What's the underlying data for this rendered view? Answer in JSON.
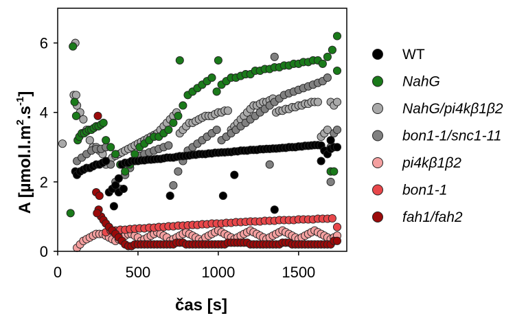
{
  "chart_data": {
    "type": "scatter",
    "xlabel": "čas [s]",
    "ylabel_parts": [
      "A [µmol.l.m",
      "2",
      ".s",
      "-1",
      "]"
    ],
    "xlim": [
      0,
      1800
    ],
    "ylim": [
      0,
      7
    ],
    "xticks": [
      0,
      500,
      1000,
      1500
    ],
    "yticks": [
      0,
      2,
      4,
      6
    ],
    "grid": false,
    "legend_position": "right",
    "series": [
      {
        "name": "WT",
        "italic": false,
        "color": "#000000",
        "x": [
          110,
          120,
          140,
          160,
          180,
          200,
          220,
          240,
          260,
          280,
          300,
          320,
          340,
          360,
          380,
          400,
          420,
          440,
          460,
          480,
          500,
          520,
          540,
          560,
          580,
          600,
          620,
          640,
          660,
          680,
          700,
          720,
          740,
          760,
          780,
          800,
          820,
          840,
          860,
          880,
          900,
          920,
          940,
          960,
          980,
          1000,
          1020,
          1040,
          1060,
          1080,
          1100,
          1120,
          1140,
          1160,
          1180,
          1200,
          1220,
          1240,
          1260,
          1280,
          1300,
          1320,
          1340,
          1360,
          1380,
          1400,
          1420,
          1440,
          1460,
          1480,
          1500,
          1520,
          1540,
          1560,
          1580,
          1600,
          1620,
          1640,
          1660,
          1680,
          1700,
          1720,
          1740,
          350,
          380,
          410,
          700,
          1030,
          1350,
          1700,
          1640,
          1100
        ],
        "y": [
          2.3,
          2.2,
          2.3,
          2.35,
          2.4,
          2.4,
          2.45,
          2.5,
          2.5,
          2.55,
          2.6,
          1.7,
          1.8,
          1.9,
          2.1,
          2.5,
          2.55,
          2.55,
          2.6,
          2.6,
          2.6,
          2.62,
          2.62,
          2.64,
          2.64,
          2.65,
          2.66,
          2.66,
          2.68,
          2.7,
          2.7,
          2.7,
          2.72,
          2.74,
          2.74,
          2.75,
          2.76,
          2.78,
          2.78,
          2.8,
          2.8,
          2.8,
          2.82,
          2.82,
          2.84,
          2.84,
          2.85,
          2.85,
          2.86,
          2.86,
          2.88,
          2.88,
          2.9,
          2.9,
          2.9,
          2.92,
          2.92,
          2.92,
          2.94,
          2.94,
          2.95,
          2.95,
          2.96,
          2.96,
          2.97,
          2.98,
          2.98,
          3.0,
          3.0,
          3.0,
          3.02,
          3.02,
          3.04,
          3.04,
          3.05,
          3.06,
          3.06,
          3.05,
          2.9,
          2.8,
          2.95,
          3.0,
          3.0,
          1.3,
          1.7,
          1.8,
          1.6,
          1.6,
          1.2,
          3.2,
          2.6,
          2.2
        ]
      },
      {
        "name": "NahG",
        "italic": true,
        "color": "#1a7a1a",
        "x": [
          80,
          95,
          105,
          115,
          125,
          135,
          150,
          165,
          180,
          195,
          210,
          225,
          240,
          255,
          270,
          285,
          300,
          330,
          360,
          390,
          420,
          450,
          480,
          510,
          540,
          570,
          600,
          630,
          660,
          690,
          720,
          750,
          780,
          810,
          840,
          870,
          900,
          930,
          960,
          990,
          1020,
          1050,
          1080,
          1110,
          1140,
          1170,
          1200,
          1230,
          1260,
          1290,
          1320,
          1350,
          1380,
          1410,
          1440,
          1470,
          1500,
          1530,
          1560,
          1590,
          1620,
          1650,
          1680,
          1710,
          1740,
          760,
          1000,
          1700,
          1720,
          1740
        ],
        "y": [
          1.1,
          5.9,
          4.3,
          3.9,
          3.2,
          3.3,
          3.4,
          3.4,
          3.45,
          3.5,
          3.5,
          3.55,
          3.6,
          3.6,
          3.65,
          3.7,
          3.2,
          3.0,
          2.8,
          2.5,
          2.3,
          2.5,
          2.8,
          3.0,
          3.1,
          3.2,
          3.3,
          3.3,
          3.4,
          3.5,
          3.7,
          3.9,
          4.2,
          4.5,
          4.6,
          4.7,
          4.8,
          4.9,
          5.0,
          4.6,
          4.8,
          4.9,
          5.0,
          5.0,
          5.05,
          5.1,
          5.1,
          5.2,
          5.2,
          5.25,
          5.25,
          5.3,
          5.3,
          5.35,
          5.35,
          5.4,
          5.4,
          5.45,
          5.45,
          5.5,
          5.5,
          5.4,
          5.6,
          5.8,
          6.2,
          5.5,
          5.5,
          2.3,
          2.3,
          5.2
        ]
      },
      {
        "name": "NahG/pi4kβ1β2",
        "italic": true,
        "color": "#a9a9a9",
        "x": [
          100,
          120,
          140,
          160,
          180,
          200,
          220,
          240,
          260,
          280,
          300,
          320,
          340,
          360,
          380,
          400,
          420,
          440,
          460,
          480,
          500,
          520,
          540,
          560,
          580,
          600,
          620,
          640,
          660,
          680,
          700,
          720,
          740,
          760,
          780,
          800,
          820,
          840,
          860,
          880,
          900,
          920,
          940,
          960,
          980,
          1000,
          1020,
          1040,
          1060,
          1080,
          1100,
          1120,
          1140,
          1160,
          1180,
          1200,
          1220,
          1240,
          1260,
          1280,
          1300,
          1320,
          1340,
          1360,
          1380,
          1400,
          1420,
          1440,
          1460,
          1480,
          1500,
          1520,
          1540,
          1560,
          1580,
          1600,
          1620,
          1640,
          1660,
          1680,
          1700,
          1720,
          1740,
          110,
          115,
          30
        ],
        "y": [
          4.5,
          4.2,
          4.0,
          3.8,
          3.5,
          3.2,
          3.0,
          3.0,
          2.9,
          2.8,
          2.5,
          2.6,
          2.7,
          2.75,
          2.8,
          2.85,
          2.9,
          2.95,
          3.0,
          3.05,
          3.1,
          3.15,
          3.2,
          3.25,
          3.3,
          3.35,
          3.4,
          3.5,
          3.6,
          3.7,
          3.8,
          3.9,
          4.0,
          3.4,
          3.5,
          3.6,
          3.7,
          3.7,
          3.75,
          3.8,
          3.85,
          3.9,
          3.9,
          3.9,
          3.95,
          4.0,
          4.0,
          4.05,
          4.05,
          3.5,
          3.6,
          3.7,
          3.8,
          3.9,
          4.0,
          4.1,
          4.2,
          4.2,
          4.25,
          4.3,
          4.3,
          4.35,
          4.4,
          4.0,
          4.05,
          4.05,
          4.1,
          4.1,
          4.15,
          4.15,
          4.2,
          4.2,
          4.25,
          4.25,
          4.3,
          4.3,
          4.3,
          3.3,
          3.4,
          3.5,
          4.3,
          4.2,
          4.3,
          6.0,
          4.5,
          3.1
        ]
      },
      {
        "name": "bon1-1/snc1-11",
        "italic": true,
        "color": "#808080",
        "x": [
          120,
          150,
          180,
          210,
          240,
          270,
          300,
          330,
          360,
          390,
          420,
          450,
          480,
          510,
          540,
          570,
          600,
          630,
          660,
          690,
          720,
          750,
          780,
          810,
          840,
          870,
          900,
          930,
          960,
          990,
          1020,
          1050,
          1080,
          1110,
          1140,
          1170,
          1200,
          1230,
          1260,
          1290,
          1320,
          1350,
          1380,
          1410,
          1440,
          1470,
          1500,
          1530,
          1560,
          1590,
          1620,
          1650,
          1680,
          1700,
          1720,
          1740,
          1350,
          1320,
          1700
        ],
        "y": [
          2.6,
          2.7,
          2.8,
          2.9,
          2.95,
          2.95,
          3.0,
          2.5,
          2.0,
          1.8,
          2.2,
          2.4,
          2.6,
          2.75,
          2.8,
          2.85,
          2.9,
          2.95,
          3.0,
          3.05,
          1.9,
          2.3,
          2.6,
          2.9,
          3.0,
          3.1,
          3.2,
          3.3,
          3.4,
          3.5,
          3.2,
          3.3,
          3.4,
          3.5,
          3.6,
          3.7,
          3.8,
          3.9,
          4.0,
          4.1,
          4.2,
          4.3,
          4.4,
          4.5,
          4.55,
          4.6,
          4.65,
          4.7,
          4.75,
          4.8,
          4.85,
          4.9,
          5.0,
          3.0,
          3.4,
          3.5,
          5.6,
          2.5,
          2.0
        ]
      },
      {
        "name": "pi4kβ1β2",
        "italic": true,
        "color": "#f4a0a0",
        "x": [
          120,
          140,
          160,
          180,
          200,
          220,
          240,
          260,
          280,
          300,
          320,
          340,
          360,
          380,
          400,
          420,
          440,
          460,
          480,
          500,
          520,
          540,
          560,
          580,
          600,
          620,
          640,
          660,
          680,
          700,
          720,
          740,
          760,
          780,
          800,
          820,
          840,
          860,
          880,
          900,
          920,
          940,
          960,
          980,
          1000,
          1020,
          1040,
          1060,
          1080,
          1100,
          1120,
          1140,
          1160,
          1180,
          1200,
          1220,
          1240,
          1260,
          1280,
          1300,
          1320,
          1340,
          1360,
          1380,
          1400,
          1420,
          1440,
          1460,
          1480,
          1500,
          1520,
          1540,
          1560,
          1580,
          1600,
          1620,
          1640,
          1660,
          1680,
          1700,
          1720,
          1740
        ],
        "y": [
          0.1,
          0.2,
          0.3,
          0.35,
          0.4,
          0.45,
          0.5,
          0.5,
          0.5,
          0.45,
          0.4,
          0.35,
          0.3,
          0.35,
          0.4,
          0.45,
          0.5,
          0.5,
          0.45,
          0.4,
          0.3,
          0.35,
          0.4,
          0.45,
          0.5,
          0.55,
          0.5,
          0.45,
          0.4,
          0.3,
          0.35,
          0.4,
          0.45,
          0.5,
          0.55,
          0.5,
          0.45,
          0.4,
          0.35,
          0.3,
          0.4,
          0.45,
          0.5,
          0.55,
          0.6,
          0.55,
          0.5,
          0.45,
          0.4,
          0.35,
          0.4,
          0.45,
          0.5,
          0.55,
          0.6,
          0.55,
          0.5,
          0.45,
          0.4,
          0.35,
          0.4,
          0.45,
          0.5,
          0.55,
          0.6,
          0.55,
          0.5,
          0.45,
          0.4,
          0.35,
          0.4,
          0.45,
          0.5,
          0.55,
          0.6,
          0.55,
          0.5,
          0.45,
          0.4,
          0.35,
          0.4,
          0.45
        ]
      },
      {
        "name": "bon1-1",
        "italic": true,
        "color": "#e8474a",
        "x": [
          300,
          330,
          360,
          390,
          420,
          450,
          480,
          510,
          540,
          570,
          600,
          630,
          660,
          690,
          720,
          750,
          780,
          810,
          840,
          870,
          900,
          930,
          960,
          990,
          1020,
          1050,
          1080,
          1110,
          1140,
          1170,
          1200,
          1230,
          1260,
          1290,
          1320,
          1350,
          1380,
          1410,
          1440,
          1470,
          1500,
          1530,
          1560,
          1590,
          1620,
          1650,
          1680,
          1710,
          1740
        ],
        "y": [
          0.55,
          0.6,
          0.6,
          0.62,
          0.62,
          0.64,
          0.65,
          0.66,
          0.66,
          0.68,
          0.68,
          0.7,
          0.7,
          0.72,
          0.72,
          0.74,
          0.74,
          0.75,
          0.76,
          0.76,
          0.78,
          0.78,
          0.8,
          0.8,
          0.8,
          0.82,
          0.82,
          0.84,
          0.84,
          0.85,
          0.86,
          0.86,
          0.86,
          0.88,
          0.88,
          0.88,
          0.9,
          0.9,
          0.9,
          0.9,
          0.92,
          0.92,
          0.92,
          0.92,
          0.94,
          0.94,
          0.94,
          0.95,
          0.7
        ]
      },
      {
        "name": "fah1/fah2",
        "italic": true,
        "color": "#9b0a0a",
        "x": [
          240,
          255,
          270,
          285,
          300,
          320,
          340,
          360,
          380,
          400,
          420,
          440,
          460,
          480,
          500,
          520,
          540,
          560,
          580,
          600,
          620,
          640,
          660,
          680,
          700,
          720,
          740,
          760,
          780,
          800,
          820,
          840,
          860,
          880,
          900,
          920,
          940,
          960,
          980,
          1000,
          1020,
          1040,
          1060,
          1080,
          1100,
          1120,
          1140,
          1160,
          1180,
          1200,
          1220,
          1240,
          1260,
          1280,
          1300,
          1320,
          1340,
          1360,
          1380,
          1400,
          1420,
          1440,
          1460,
          1480,
          1500,
          1520,
          1540,
          1560,
          1580,
          1600,
          1620,
          1640,
          1660,
          1680,
          1700,
          1720,
          1740,
          250,
          260,
          245
        ],
        "y": [
          1.7,
          1.2,
          1.0,
          0.9,
          0.8,
          0.7,
          0.6,
          0.5,
          0.4,
          0.3,
          0.2,
          0.15,
          0.15,
          0.2,
          0.2,
          0.2,
          0.2,
          0.2,
          0.2,
          0.2,
          0.2,
          0.2,
          0.2,
          0.2,
          0.2,
          0.2,
          0.25,
          0.25,
          0.25,
          0.2,
          0.2,
          0.2,
          0.2,
          0.2,
          0.2,
          0.2,
          0.2,
          0.2,
          0.2,
          0.2,
          0.2,
          0.2,
          0.25,
          0.25,
          0.25,
          0.25,
          0.25,
          0.25,
          0.25,
          0.2,
          0.2,
          0.2,
          0.2,
          0.2,
          0.2,
          0.2,
          0.2,
          0.2,
          0.2,
          0.25,
          0.25,
          0.25,
          0.2,
          0.2,
          0.2,
          0.2,
          0.2,
          0.2,
          0.2,
          0.2,
          0.2,
          0.2,
          0.2,
          0.2,
          0.2,
          0.3,
          0.3,
          3.9,
          1.6,
          1.1
        ]
      }
    ]
  }
}
